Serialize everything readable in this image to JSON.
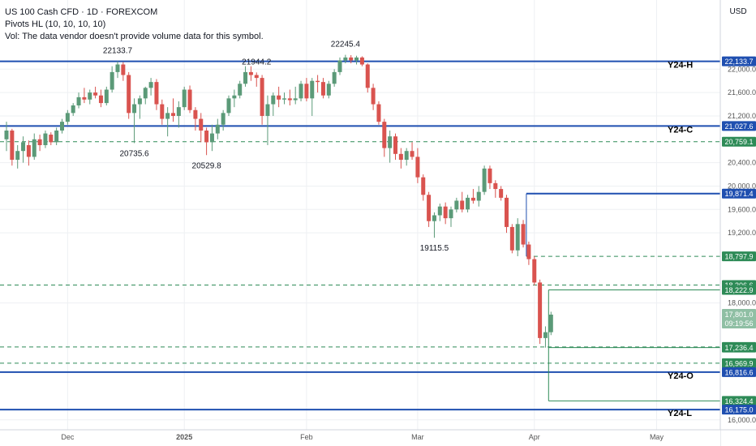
{
  "header": {
    "symbol_line": "US 100 Cash CFD · 1D · FOREXCOM",
    "indicator_line": "Pivots HL (10, 10, 10, 10)",
    "volume_line": "Vol: The data vendor doesn't provide volume data for this symbol."
  },
  "colors": {
    "up": "#5b9a78",
    "down": "#d9534f",
    "blue_line": "#1f4fb0",
    "dashed_line": "#2e8b57",
    "grid": "#eef0f3",
    "text": "#131722"
  },
  "chart_data": {
    "type": "candlestick",
    "currency_label": "USD",
    "ylim": [
      15900,
      23100
    ],
    "y_ticks": [
      {
        "v": 22000,
        "label": "22,000.0"
      },
      {
        "v": 21600,
        "label": "21,600.0"
      },
      {
        "v": 21200,
        "label": "21,200.0"
      },
      {
        "v": 20400,
        "label": "20,400.0"
      },
      {
        "v": 20000,
        "label": "20,000.0"
      },
      {
        "v": 19600,
        "label": "19,600.0"
      },
      {
        "v": 19200,
        "label": "19,200.0"
      },
      {
        "v": 18000,
        "label": "18,000.0"
      },
      {
        "v": 16000,
        "label": "16,000.0"
      }
    ],
    "x_ticks": [
      {
        "i": 11,
        "label": "Dec"
      },
      {
        "i": 32,
        "label": "2025"
      },
      {
        "i": 54,
        "label": "Feb"
      },
      {
        "i": 74,
        "label": "Mar"
      },
      {
        "i": 95,
        "label": "Apr"
      },
      {
        "i": 117,
        "label": "May"
      }
    ],
    "candles": [
      {
        "o": 20800,
        "h": 21100,
        "l": 20600,
        "c": 20950
      },
      {
        "o": 20950,
        "h": 20980,
        "l": 20350,
        "c": 20450
      },
      {
        "o": 20450,
        "h": 20700,
        "l": 20300,
        "c": 20600
      },
      {
        "o": 20600,
        "h": 20850,
        "l": 20400,
        "c": 20750
      },
      {
        "o": 20700,
        "h": 20780,
        "l": 20350,
        "c": 20500
      },
      {
        "o": 20500,
        "h": 20900,
        "l": 20450,
        "c": 20800
      },
      {
        "o": 20800,
        "h": 20880,
        "l": 20600,
        "c": 20700
      },
      {
        "o": 20700,
        "h": 20950,
        "l": 20650,
        "c": 20900
      },
      {
        "o": 20880,
        "h": 20920,
        "l": 20700,
        "c": 20750
      },
      {
        "o": 20750,
        "h": 21000,
        "l": 20700,
        "c": 20950
      },
      {
        "o": 20950,
        "h": 21150,
        "l": 20900,
        "c": 21100
      },
      {
        "o": 21100,
        "h": 21300,
        "l": 21050,
        "c": 21250
      },
      {
        "o": 21250,
        "h": 21420,
        "l": 21200,
        "c": 21380
      },
      {
        "o": 21380,
        "h": 21600,
        "l": 21330,
        "c": 21520
      },
      {
        "o": 21520,
        "h": 21680,
        "l": 21420,
        "c": 21480
      },
      {
        "o": 21480,
        "h": 21650,
        "l": 21400,
        "c": 21600
      },
      {
        "o": 21600,
        "h": 21700,
        "l": 21500,
        "c": 21550
      },
      {
        "o": 21550,
        "h": 21650,
        "l": 21350,
        "c": 21420
      },
      {
        "o": 21420,
        "h": 21700,
        "l": 21380,
        "c": 21650
      },
      {
        "o": 21650,
        "h": 22050,
        "l": 21600,
        "c": 21950
      },
      {
        "o": 21950,
        "h": 22133.7,
        "l": 21850,
        "c": 22080
      },
      {
        "o": 22080,
        "h": 22120,
        "l": 21800,
        "c": 21900
      },
      {
        "o": 21900,
        "h": 21950,
        "l": 21150,
        "c": 21250
      },
      {
        "o": 21250,
        "h": 21500,
        "l": 20735.6,
        "c": 21400
      },
      {
        "o": 21400,
        "h": 21550,
        "l": 21150,
        "c": 21500
      },
      {
        "o": 21500,
        "h": 21700,
        "l": 21400,
        "c": 21680
      },
      {
        "o": 21680,
        "h": 21850,
        "l": 21550,
        "c": 21780
      },
      {
        "o": 21780,
        "h": 21830,
        "l": 21300,
        "c": 21400
      },
      {
        "o": 21400,
        "h": 21480,
        "l": 21050,
        "c": 21150
      },
      {
        "o": 21150,
        "h": 21350,
        "l": 20850,
        "c": 21250
      },
      {
        "o": 21250,
        "h": 21500,
        "l": 21100,
        "c": 21200
      },
      {
        "o": 21200,
        "h": 21450,
        "l": 21000,
        "c": 21350
      },
      {
        "o": 21350,
        "h": 21700,
        "l": 21300,
        "c": 21650
      },
      {
        "o": 21650,
        "h": 21720,
        "l": 21250,
        "c": 21300
      },
      {
        "o": 21300,
        "h": 21350,
        "l": 20950,
        "c": 21150
      },
      {
        "o": 21150,
        "h": 21250,
        "l": 20750,
        "c": 20950
      },
      {
        "o": 20950,
        "h": 21000,
        "l": 20529.8,
        "c": 20750
      },
      {
        "o": 20750,
        "h": 21050,
        "l": 20600,
        "c": 20900
      },
      {
        "o": 20900,
        "h": 21150,
        "l": 20800,
        "c": 21050
      },
      {
        "o": 21050,
        "h": 21300,
        "l": 20950,
        "c": 21250
      },
      {
        "o": 21250,
        "h": 21550,
        "l": 21200,
        "c": 21500
      },
      {
        "o": 21500,
        "h": 21650,
        "l": 21350,
        "c": 21550
      },
      {
        "o": 21550,
        "h": 21800,
        "l": 21500,
        "c": 21750
      },
      {
        "o": 21750,
        "h": 22050,
        "l": 21700,
        "c": 21950
      },
      {
        "o": 21950,
        "h": 22050,
        "l": 21800,
        "c": 21900
      },
      {
        "o": 21900,
        "h": 21944.2,
        "l": 21700,
        "c": 21850
      },
      {
        "o": 21850,
        "h": 21900,
        "l": 21050,
        "c": 21200
      },
      {
        "o": 21200,
        "h": 21550,
        "l": 20700,
        "c": 21400
      },
      {
        "o": 21400,
        "h": 21600,
        "l": 21200,
        "c": 21550
      },
      {
        "o": 21550,
        "h": 21700,
        "l": 21350,
        "c": 21480
      },
      {
        "o": 21480,
        "h": 21600,
        "l": 21400,
        "c": 21500
      },
      {
        "o": 21500,
        "h": 21650,
        "l": 21380,
        "c": 21470
      },
      {
        "o": 21470,
        "h": 21700,
        "l": 21400,
        "c": 21500
      },
      {
        "o": 21500,
        "h": 21800,
        "l": 21450,
        "c": 21750
      },
      {
        "o": 21750,
        "h": 21850,
        "l": 21450,
        "c": 21500
      },
      {
        "o": 21500,
        "h": 21850,
        "l": 21200,
        "c": 21800
      },
      {
        "o": 21800,
        "h": 21900,
        "l": 21600,
        "c": 21780
      },
      {
        "o": 21780,
        "h": 21850,
        "l": 21500,
        "c": 21550
      },
      {
        "o": 21550,
        "h": 21800,
        "l": 21500,
        "c": 21750
      },
      {
        "o": 21750,
        "h": 22000,
        "l": 21700,
        "c": 21950
      },
      {
        "o": 21950,
        "h": 22200,
        "l": 21900,
        "c": 22150
      },
      {
        "o": 22150,
        "h": 22245.4,
        "l": 22100,
        "c": 22200
      },
      {
        "o": 22200,
        "h": 22240,
        "l": 22100,
        "c": 22150
      },
      {
        "o": 22150,
        "h": 22230,
        "l": 22080,
        "c": 22200
      },
      {
        "o": 22200,
        "h": 22220,
        "l": 22050,
        "c": 22080
      },
      {
        "o": 22080,
        "h": 22100,
        "l": 21600,
        "c": 21680
      },
      {
        "o": 21680,
        "h": 21750,
        "l": 21300,
        "c": 21400
      },
      {
        "o": 21400,
        "h": 21450,
        "l": 21050,
        "c": 21100
      },
      {
        "o": 21100,
        "h": 21150,
        "l": 20500,
        "c": 20650
      },
      {
        "o": 20650,
        "h": 20950,
        "l": 20400,
        "c": 20850
      },
      {
        "o": 20850,
        "h": 20900,
        "l": 20450,
        "c": 20550
      },
      {
        "o": 20550,
        "h": 20650,
        "l": 20300,
        "c": 20450
      },
      {
        "o": 20450,
        "h": 20650,
        "l": 20350,
        "c": 20600
      },
      {
        "o": 20600,
        "h": 20750,
        "l": 20450,
        "c": 20500
      },
      {
        "o": 20500,
        "h": 20650,
        "l": 20050,
        "c": 20150
      },
      {
        "o": 20150,
        "h": 20200,
        "l": 19750,
        "c": 19850
      },
      {
        "o": 19850,
        "h": 19900,
        "l": 19300,
        "c": 19400
      },
      {
        "o": 19400,
        "h": 19550,
        "l": 19115.5,
        "c": 19500
      },
      {
        "o": 19500,
        "h": 19700,
        "l": 19400,
        "c": 19650
      },
      {
        "o": 19650,
        "h": 19720,
        "l": 19350,
        "c": 19450
      },
      {
        "o": 19450,
        "h": 19650,
        "l": 19300,
        "c": 19600
      },
      {
        "o": 19600,
        "h": 19800,
        "l": 19550,
        "c": 19750
      },
      {
        "o": 19750,
        "h": 19900,
        "l": 19550,
        "c": 19600
      },
      {
        "o": 19600,
        "h": 19850,
        "l": 19550,
        "c": 19800
      },
      {
        "o": 19800,
        "h": 19950,
        "l": 19700,
        "c": 19750
      },
      {
        "o": 19750,
        "h": 20000,
        "l": 19650,
        "c": 19900
      },
      {
        "o": 19900,
        "h": 20350,
        "l": 19850,
        "c": 20300
      },
      {
        "o": 20300,
        "h": 20350,
        "l": 19950,
        "c": 20050
      },
      {
        "o": 20050,
        "h": 20100,
        "l": 19800,
        "c": 19950
      },
      {
        "o": 19950,
        "h": 20000,
        "l": 19750,
        "c": 19800
      },
      {
        "o": 19800,
        "h": 19850,
        "l": 19200,
        "c": 19300
      },
      {
        "o": 19300,
        "h": 19350,
        "l": 18850,
        "c": 18900
      },
      {
        "o": 18900,
        "h": 19450,
        "l": 18800,
        "c": 19350
      },
      {
        "o": 19350,
        "h": 19420,
        "l": 18950,
        "c": 19000
      },
      {
        "o": 19000,
        "h": 19050,
        "l": 18650,
        "c": 18750
      },
      {
        "o": 18750,
        "h": 18800,
        "l": 18300,
        "c": 18350
      },
      {
        "o": 18350,
        "h": 18400,
        "l": 17300,
        "c": 17400
      },
      {
        "o": 17400,
        "h": 17600,
        "l": 17236.4,
        "c": 17500
      },
      {
        "o": 17500,
        "h": 17850,
        "l": 17450,
        "c": 17801
      }
    ],
    "hlines": [
      {
        "v": 22133.7,
        "style": "solid",
        "kind": "blue",
        "label": "22,133.7",
        "tag": "Y24-H",
        "from": 0
      },
      {
        "v": 21027.6,
        "style": "solid",
        "kind": "blue",
        "label": "21,027.6",
        "tag": "Y24-C",
        "from": 0
      },
      {
        "v": 20759.1,
        "style": "dashed",
        "kind": "green",
        "label": "20,759.1",
        "tag": "",
        "from": 0
      },
      {
        "v": 19871.4,
        "style": "solid",
        "kind": "blue",
        "label": "19,871.4",
        "tag": "",
        "from": 94
      },
      {
        "v": 18797.9,
        "style": "dashed",
        "kind": "green",
        "label": "18,797.9",
        "tag": "",
        "from": 94
      },
      {
        "v": 18306.6,
        "style": "dashed",
        "kind": "green",
        "label": "18,306.6",
        "tag": "",
        "from": 0
      },
      {
        "v": 18222.9,
        "style": "solid",
        "kind": "thin",
        "label": "18,222.9",
        "tag": "",
        "from": 98
      },
      {
        "v": 17247.1,
        "style": "dashed",
        "kind": "green",
        "label": "17,247.1",
        "tag": "",
        "from": 0
      },
      {
        "v": 17236.4,
        "style": "solid",
        "kind": "thin",
        "label": "17,236.4",
        "tag": "",
        "from": 98
      },
      {
        "v": 16969.9,
        "style": "dashed",
        "kind": "green",
        "label": "16,969.9",
        "tag": "",
        "from": 0
      },
      {
        "v": 16816.6,
        "style": "solid",
        "kind": "blue",
        "label": "16,816.6",
        "tag": "Y24-O",
        "from": 0
      },
      {
        "v": 16324.4,
        "style": "solid",
        "kind": "thin",
        "label": "16,324.4",
        "tag": "",
        "from": 98
      },
      {
        "v": 16175.0,
        "style": "solid",
        "kind": "blue",
        "label": "16,175.0",
        "tag": "Y24-L",
        "from": 0
      }
    ],
    "current_price": {
      "value": 17801.0,
      "label": "17,801.0",
      "countdown": "09:19:56"
    },
    "pivot_labels": [
      {
        "i": 20,
        "v": 22133.7,
        "text": "22133.7",
        "pos": "above"
      },
      {
        "i": 23,
        "v": 20735.6,
        "text": "20735.6",
        "pos": "below"
      },
      {
        "i": 36,
        "v": 20529.8,
        "text": "20529.8",
        "pos": "below"
      },
      {
        "i": 45,
        "v": 21944.2,
        "text": "21944.2",
        "pos": "above"
      },
      {
        "i": 61,
        "v": 22245.4,
        "text": "22245.4",
        "pos": "above"
      },
      {
        "i": 77,
        "v": 19115.5,
        "text": "19115.5",
        "pos": "below"
      }
    ]
  }
}
